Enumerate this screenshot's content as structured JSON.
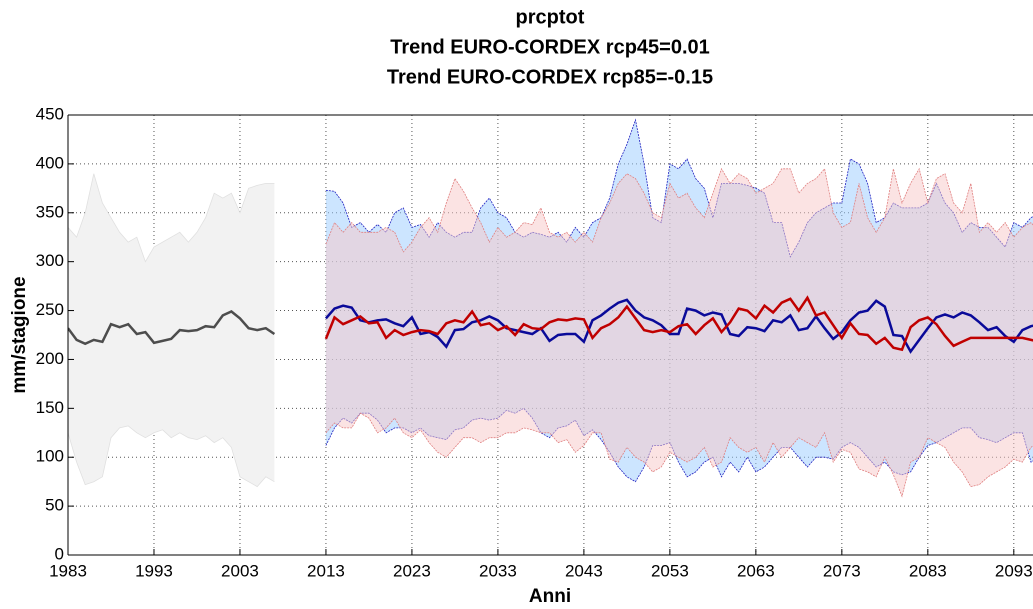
{
  "chart_data": {
    "type": "line",
    "title": [
      "prcptot",
      "Trend EURO-CORDEX rcp45=0.01",
      "Trend EURO-CORDEX rcp85=-0.15"
    ],
    "ylabel": "mm/stagione",
    "xlabel": "Anni",
    "xlim": [
      1983,
      2095
    ],
    "ylim": [
      0,
      450
    ],
    "xticks": [
      1983,
      1993,
      2003,
      2013,
      2023,
      2033,
      2043,
      2053,
      2063,
      2073,
      2083,
      2093
    ],
    "yticks": [
      0,
      50,
      100,
      150,
      200,
      250,
      300,
      350,
      400,
      450
    ],
    "grid": true,
    "x": [
      1983,
      1984,
      1985,
      1986,
      1987,
      1988,
      1989,
      1990,
      1991,
      1992,
      1993,
      1994,
      1995,
      1996,
      1997,
      1998,
      1999,
      2000,
      2001,
      2002,
      2003,
      2004,
      2005,
      2006,
      2007,
      2008,
      2009,
      2010,
      2011,
      2012,
      2013,
      2014,
      2015,
      2016,
      2017,
      2018,
      2019,
      2020,
      2021,
      2022,
      2023,
      2024,
      2025,
      2026,
      2027,
      2028,
      2029,
      2030,
      2031,
      2032,
      2033,
      2034,
      2035,
      2036,
      2037,
      2038,
      2039,
      2040,
      2041,
      2042,
      2043,
      2044,
      2045,
      2046,
      2047,
      2048,
      2049,
      2050,
      2051,
      2052,
      2053,
      2054,
      2055,
      2056,
      2057,
      2058,
      2059,
      2060,
      2061,
      2062,
      2063,
      2064,
      2065,
      2066,
      2067,
      2068,
      2069,
      2070,
      2071,
      2072,
      2073,
      2074,
      2075,
      2076,
      2077,
      2078,
      2079,
      2080,
      2081,
      2082,
      2083,
      2084,
      2085,
      2086,
      2087,
      2088,
      2089,
      2090,
      2091,
      2092,
      2093,
      2094,
      2095,
      2096,
      2097
    ],
    "bands": [
      {
        "color": "#f2f2f2",
        "edge": "#e0e0e0",
        "high": [
          335,
          325,
          350,
          390,
          360,
          345,
          330,
          320,
          325,
          300,
          315,
          320,
          325,
          330,
          320,
          330,
          345,
          370,
          365,
          370,
          350,
          375,
          378,
          380,
          380,
          null,
          null,
          null,
          null,
          null,
          null,
          null,
          null,
          null,
          null,
          null,
          null,
          null,
          null,
          null,
          null,
          null,
          null,
          null,
          null,
          null,
          null,
          null,
          null,
          null,
          null,
          null,
          null,
          null,
          null,
          null,
          null,
          null,
          null,
          null,
          null,
          null,
          null,
          null,
          null,
          null,
          null,
          null,
          null,
          null,
          null,
          null,
          null,
          null,
          null,
          null,
          null,
          null,
          null,
          null,
          null,
          null,
          null,
          null,
          null,
          null,
          null,
          null,
          null,
          null,
          null,
          null,
          null,
          null,
          null,
          null,
          null,
          null,
          null,
          null,
          null,
          null,
          null,
          null,
          null,
          null,
          null,
          null,
          null,
          null,
          null,
          null,
          null,
          null,
          null
        ],
        "low": [
          125,
          95,
          72,
          75,
          80,
          120,
          130,
          132,
          125,
          120,
          125,
          128,
          120,
          125,
          120,
          118,
          122,
          115,
          120,
          110,
          80,
          75,
          70,
          80,
          75,
          null,
          null,
          null,
          null,
          null,
          null,
          null,
          null,
          null,
          null,
          null,
          null,
          null,
          null,
          null,
          null,
          null,
          null,
          null,
          null,
          null,
          null,
          null,
          null,
          null,
          null,
          null,
          null,
          null,
          null,
          null,
          null,
          null,
          null,
          null,
          null,
          null,
          null,
          null,
          null,
          null,
          null,
          null,
          null,
          null,
          null,
          null,
          null,
          null,
          null,
          null,
          null,
          null,
          null,
          null,
          null,
          null,
          null,
          null,
          null,
          null,
          null,
          null,
          null,
          null,
          null,
          null,
          null,
          null,
          null,
          null,
          null,
          null,
          null,
          null,
          null,
          null,
          null,
          null,
          null,
          null,
          null,
          null,
          null,
          null,
          null,
          null,
          null,
          null,
          null
        ]
      },
      {
        "color": "#99ccff",
        "edge": "#2020c0",
        "high": [
          null,
          null,
          null,
          null,
          null,
          null,
          null,
          null,
          null,
          null,
          null,
          null,
          null,
          null,
          null,
          null,
          null,
          null,
          null,
          null,
          null,
          null,
          null,
          null,
          null,
          null,
          null,
          null,
          null,
          null,
          373,
          372,
          360,
          335,
          340,
          330,
          338,
          330,
          350,
          355,
          335,
          338,
          325,
          340,
          330,
          325,
          330,
          330,
          355,
          365,
          350,
          345,
          330,
          325,
          330,
          328,
          325,
          330,
          320,
          335,
          325,
          340,
          345,
          365,
          400,
          420,
          445,
          400,
          345,
          340,
          400,
          395,
          405,
          385,
          375,
          345,
          380,
          380,
          380,
          378,
          375,
          370,
          340,
          340,
          305,
          320,
          340,
          350,
          355,
          360,
          360,
          405,
          400,
          380,
          340,
          345,
          360,
          355,
          355,
          355,
          360,
          380,
          360,
          350,
          330,
          340,
          335,
          335,
          325,
          315,
          340,
          335,
          345,
          350,
          345
        ],
        "low": [
          null,
          null,
          null,
          null,
          null,
          null,
          null,
          null,
          null,
          null,
          null,
          null,
          null,
          null,
          null,
          null,
          null,
          null,
          null,
          null,
          null,
          null,
          null,
          null,
          null,
          null,
          null,
          null,
          null,
          null,
          112,
          130,
          140,
          135,
          145,
          145,
          138,
          125,
          130,
          130,
          125,
          130,
          122,
          120,
          118,
          128,
          130,
          138,
          140,
          138,
          140,
          148,
          145,
          150,
          140,
          125,
          120,
          130,
          132,
          138,
          122,
          128,
          118,
          105,
          90,
          80,
          75,
          90,
          112,
          112,
          115,
          95,
          80,
          85,
          95,
          100,
          80,
          95,
          85,
          100,
          85,
          90,
          100,
          110,
          110,
          100,
          90,
          100,
          100,
          98,
          110,
          115,
          110,
          100,
          90,
          95,
          85,
          82,
          85,
          100,
          112,
          115,
          120,
          125,
          130,
          130,
          120,
          118,
          115,
          120,
          125,
          125,
          95,
          100,
          100
        ]
      },
      {
        "color": "#f8c8c8",
        "edge": "#e08080",
        "high": [
          null,
          null,
          null,
          null,
          null,
          null,
          null,
          null,
          null,
          null,
          null,
          null,
          null,
          null,
          null,
          null,
          null,
          null,
          null,
          null,
          null,
          null,
          null,
          null,
          null,
          null,
          null,
          null,
          null,
          null,
          318,
          340,
          330,
          340,
          330,
          330,
          330,
          335,
          330,
          310,
          320,
          335,
          345,
          330,
          360,
          385,
          372,
          355,
          340,
          320,
          335,
          325,
          330,
          340,
          338,
          355,
          330,
          325,
          330,
          320,
          330,
          320,
          345,
          360,
          380,
          390,
          385,
          370,
          350,
          345,
          380,
          365,
          370,
          355,
          345,
          370,
          395,
          380,
          390,
          385,
          370,
          375,
          380,
          395,
          395,
          370,
          380,
          385,
          395,
          350,
          335,
          340,
          380,
          345,
          330,
          345,
          395,
          360,
          380,
          395,
          360,
          385,
          390,
          360,
          350,
          380,
          330,
          340,
          330,
          340,
          325,
          335,
          340,
          330,
          345
        ],
        "low": [
          null,
          null,
          null,
          null,
          null,
          null,
          null,
          null,
          null,
          null,
          null,
          null,
          null,
          null,
          null,
          null,
          null,
          null,
          null,
          null,
          null,
          null,
          null,
          null,
          null,
          null,
          null,
          null,
          null,
          null,
          125,
          135,
          130,
          130,
          145,
          140,
          125,
          130,
          140,
          125,
          120,
          128,
          115,
          105,
          100,
          110,
          120,
          120,
          115,
          120,
          120,
          125,
          125,
          130,
          128,
          125,
          125,
          115,
          118,
          105,
          112,
          125,
          125,
          98,
          95,
          110,
          100,
          95,
          85,
          90,
          105,
          100,
          95,
          100,
          110,
          90,
          95,
          120,
          110,
          105,
          110,
          95,
          115,
          100,
          110,
          120,
          115,
          110,
          125,
          95,
          108,
          105,
          88,
          85,
          80,
          100,
          82,
          60,
          95,
          100,
          120,
          115,
          110,
          95,
          85,
          70,
          72,
          80,
          85,
          90,
          98,
          95,
          110,
          118,
          125
        ]
      }
    ],
    "series": [
      {
        "color": "#4d4d4d",
        "values": [
          232,
          220,
          216,
          220,
          218,
          236,
          233,
          236,
          226,
          228,
          217,
          219,
          221,
          230,
          229,
          230,
          234,
          233,
          245,
          249,
          242,
          232,
          230,
          232,
          226,
          null,
          null,
          null,
          null,
          null,
          null,
          null,
          null,
          null,
          null,
          null,
          null,
          null,
          null,
          null,
          null,
          null,
          null,
          null,
          null,
          null,
          null,
          null,
          null,
          null,
          null,
          null,
          null,
          null,
          null,
          null,
          null,
          null,
          null,
          null,
          null,
          null,
          null,
          null,
          null,
          null,
          null,
          null,
          null,
          null,
          null,
          null,
          null,
          null,
          null,
          null,
          null,
          null,
          null,
          null,
          null,
          null,
          null,
          null,
          null,
          null,
          null,
          null,
          null,
          null,
          null,
          null,
          null,
          null,
          null,
          null,
          null,
          null,
          null,
          null,
          null,
          null,
          null,
          null,
          null,
          null,
          null,
          null,
          null,
          null,
          null,
          null,
          null,
          null,
          null
        ]
      },
      {
        "color": "#0a0a99",
        "values": [
          null,
          null,
          null,
          null,
          null,
          null,
          null,
          null,
          null,
          null,
          null,
          null,
          null,
          null,
          null,
          null,
          null,
          null,
          null,
          null,
          null,
          null,
          null,
          null,
          null,
          null,
          null,
          null,
          null,
          null,
          242,
          252,
          255,
          253,
          240,
          238,
          240,
          241,
          237,
          234,
          243,
          226,
          228,
          223,
          213,
          230,
          231,
          238,
          240,
          244,
          240,
          232,
          230,
          228,
          226,
          232,
          219,
          225,
          226,
          226,
          218,
          240,
          245,
          252,
          258,
          261,
          250,
          243,
          240,
          235,
          226,
          226,
          252,
          250,
          245,
          248,
          246,
          226,
          224,
          233,
          232,
          229,
          240,
          238,
          245,
          230,
          232,
          244,
          232,
          221,
          228,
          240,
          248,
          250,
          260,
          254,
          225,
          224,
          208,
          220,
          232,
          243,
          246,
          243,
          248,
          245,
          238,
          230,
          233,
          224,
          218,
          230,
          234,
          236,
          238
        ]
      },
      {
        "color": "#c00000",
        "values": [
          null,
          null,
          null,
          null,
          null,
          null,
          null,
          null,
          null,
          null,
          null,
          null,
          null,
          null,
          null,
          null,
          null,
          null,
          null,
          null,
          null,
          null,
          null,
          null,
          null,
          null,
          null,
          null,
          null,
          null,
          221,
          243,
          236,
          240,
          244,
          237,
          238,
          222,
          230,
          225,
          228,
          230,
          229,
          226,
          237,
          240,
          238,
          249,
          235,
          237,
          230,
          234,
          225,
          236,
          232,
          231,
          238,
          241,
          240,
          242,
          241,
          222,
          232,
          236,
          243,
          254,
          242,
          230,
          228,
          230,
          228,
          234,
          236,
          226,
          235,
          242,
          228,
          238,
          252,
          250,
          242,
          255,
          248,
          258,
          262,
          250,
          263,
          245,
          248,
          235,
          222,
          237,
          226,
          225,
          216,
          222,
          212,
          210,
          233,
          240,
          243,
          236,
          224,
          214,
          218,
          222,
          222,
          222,
          222,
          222,
          222,
          222,
          220,
          218,
          225
        ]
      }
    ]
  }
}
